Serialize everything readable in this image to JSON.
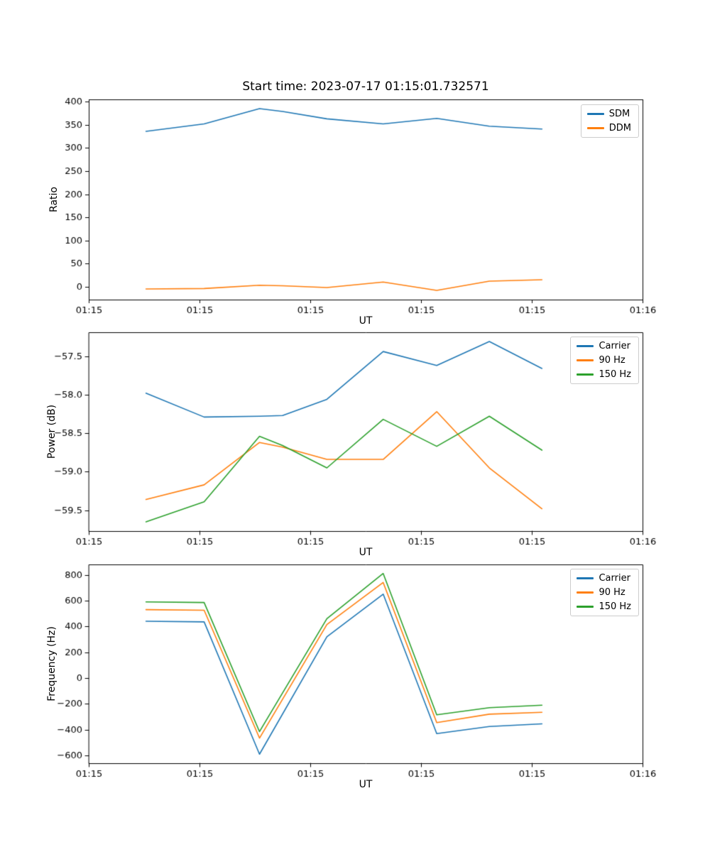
{
  "chart_data": [
    {
      "type": "line",
      "title": "Start time: 2023-07-17 01:15:01.732571",
      "xlabel": "UT",
      "ylabel": "Ratio",
      "xlim": [
        0,
        60
      ],
      "xticks": [
        0,
        12,
        24,
        36,
        48,
        60
      ],
      "xticklabels": [
        "01:15",
        "01:15",
        "01:15",
        "01:15",
        "01:15",
        "01:16"
      ],
      "ylim": [
        -28,
        405
      ],
      "yticks": [
        0,
        50,
        100,
        150,
        200,
        250,
        300,
        350,
        400
      ],
      "yticklabels": [
        "0",
        "50",
        "100",
        "150",
        "200",
        "250",
        "300",
        "350",
        "400"
      ],
      "legend_position": "upper right",
      "grid": false,
      "series": [
        {
          "name": "SDM",
          "color": "#1f77b4",
          "x": [
            6.2,
            12.5,
            18.5,
            21.0,
            25.8,
            31.9,
            37.7,
            43.4,
            49.1
          ],
          "y": [
            336,
            352,
            385,
            379,
            363,
            352,
            364,
            347,
            341
          ]
        },
        {
          "name": "DDM",
          "color": "#ff7f0e",
          "x": [
            6.2,
            12.5,
            18.5,
            21.0,
            25.8,
            31.9,
            37.7,
            43.4,
            49.1
          ],
          "y": [
            -5,
            -4,
            3,
            2,
            -2,
            10,
            -8,
            12,
            15
          ]
        }
      ]
    },
    {
      "type": "line",
      "title": "",
      "xlabel": "UT",
      "ylabel": "Power (dB)",
      "xlim": [
        0,
        60
      ],
      "xticks": [
        0,
        12,
        24,
        36,
        48,
        60
      ],
      "xticklabels": [
        "01:15",
        "01:15",
        "01:15",
        "01:15",
        "01:15",
        "01:16"
      ],
      "ylim": [
        -59.77,
        -57.19
      ],
      "yticks": [
        -59.5,
        -59.0,
        -58.5,
        -58.0,
        -57.5
      ],
      "yticklabels": [
        "−59.5",
        "−59.0",
        "−58.5",
        "−58.0",
        "−57.5"
      ],
      "legend_position": "upper right",
      "grid": false,
      "series": [
        {
          "name": "Carrier",
          "color": "#1f77b4",
          "x": [
            6.2,
            12.5,
            18.5,
            21.0,
            25.8,
            31.9,
            37.7,
            43.4,
            49.1
          ],
          "y": [
            -57.98,
            -58.29,
            -58.28,
            -58.27,
            -58.06,
            -57.44,
            -57.62,
            -57.31,
            -57.66
          ]
        },
        {
          "name": "90 Hz",
          "color": "#ff7f0e",
          "x": [
            6.2,
            12.5,
            18.5,
            21.0,
            25.8,
            31.9,
            37.7,
            43.4,
            49.1
          ],
          "y": [
            -59.36,
            -59.17,
            -58.62,
            -58.68,
            -58.84,
            -58.84,
            -58.22,
            -58.95,
            -59.48
          ]
        },
        {
          "name": "150 Hz",
          "color": "#2ca02c",
          "x": [
            6.2,
            12.5,
            18.5,
            21.0,
            25.8,
            31.9,
            37.7,
            43.4,
            49.1
          ],
          "y": [
            -59.65,
            -59.39,
            -58.54,
            -58.66,
            -58.95,
            -58.32,
            -58.67,
            -58.28,
            -58.72
          ]
        }
      ]
    },
    {
      "type": "line",
      "title": "",
      "xlabel": "UT",
      "ylabel": "Frequency (Hz)",
      "xlim": [
        0,
        60
      ],
      "xticks": [
        0,
        12,
        24,
        36,
        48,
        60
      ],
      "xticklabels": [
        "01:15",
        "01:15",
        "01:15",
        "01:15",
        "01:15",
        "01:16"
      ],
      "ylim": [
        -660,
        880
      ],
      "yticks": [
        -600,
        -400,
        -200,
        0,
        200,
        400,
        600,
        800
      ],
      "yticklabels": [
        "−600",
        "−400",
        "−200",
        "0",
        "200",
        "400",
        "600",
        "800"
      ],
      "legend_position": "upper right",
      "grid": false,
      "series": [
        {
          "name": "Carrier",
          "color": "#1f77b4",
          "x": [
            6.2,
            12.5,
            18.5,
            25.8,
            31.9,
            37.7,
            43.4,
            49.1
          ],
          "y": [
            440,
            435,
            -590,
            320,
            650,
            -430,
            -375,
            -355
          ]
        },
        {
          "name": "90 Hz",
          "color": "#ff7f0e",
          "x": [
            6.2,
            12.5,
            18.5,
            25.8,
            31.9,
            37.7,
            43.4,
            49.1
          ],
          "y": [
            530,
            525,
            -465,
            415,
            740,
            -345,
            -280,
            -265
          ]
        },
        {
          "name": "150 Hz",
          "color": "#2ca02c",
          "x": [
            6.2,
            12.5,
            18.5,
            25.8,
            31.9,
            37.7,
            43.4,
            49.1
          ],
          "y": [
            590,
            585,
            -415,
            460,
            810,
            -285,
            -230,
            -210
          ]
        }
      ]
    }
  ]
}
